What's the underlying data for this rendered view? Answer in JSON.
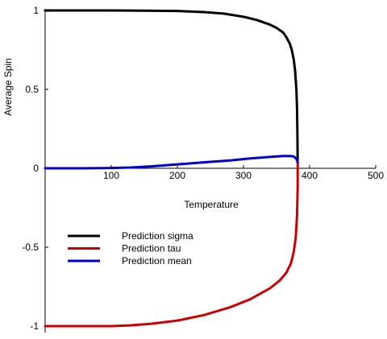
{
  "chart_data": {
    "type": "line",
    "xlabel": "Temperature",
    "ylabel": "Average Spin",
    "xlim": [
      0,
      500
    ],
    "ylim": [
      -1,
      1
    ],
    "x_ticks": [
      100,
      200,
      300,
      400,
      500
    ],
    "x_tick_labels": [
      "100",
      "200",
      "300",
      "400",
      "500"
    ],
    "y_ticks": [
      1,
      0.5,
      0,
      -0.5,
      -1
    ],
    "y_tick_labels": [
      "1",
      "0.5",
      "0",
      "-0.5",
      "-1"
    ],
    "grid": false,
    "legend_position": "bottom-left",
    "series": [
      {
        "name": "Prediction sigma",
        "color": "#000000",
        "x": [
          0,
          50,
          100,
          150,
          200,
          240,
          270,
          300,
          320,
          340,
          350,
          360,
          365,
          370,
          373,
          376,
          378,
          380,
          381,
          381.5,
          382
        ],
        "y": [
          1,
          1,
          1,
          0.999,
          0.997,
          0.99,
          0.98,
          0.96,
          0.94,
          0.91,
          0.89,
          0.86,
          0.83,
          0.79,
          0.75,
          0.69,
          0.62,
          0.5,
          0.38,
          0.25,
          0.04
        ]
      },
      {
        "name": "Prediction tau",
        "color": "#cc0000",
        "x": [
          0,
          50,
          100,
          130,
          160,
          200,
          240,
          280,
          310,
          340,
          355,
          365,
          372,
          376,
          379,
          381,
          382,
          382
        ],
        "y": [
          -1,
          -1,
          -1,
          -0.995,
          -0.985,
          -0.965,
          -0.93,
          -0.88,
          -0.83,
          -0.76,
          -0.71,
          -0.66,
          -0.6,
          -0.53,
          -0.44,
          -0.3,
          -0.12,
          0.04
        ]
      },
      {
        "name": "Prediction mean",
        "color": "#0000cc",
        "x": [
          0,
          50,
          100,
          130,
          160,
          200,
          240,
          280,
          310,
          340,
          360,
          370,
          376,
          380,
          382
        ],
        "y": [
          0,
          0,
          0.002,
          0.005,
          0.012,
          0.025,
          0.038,
          0.05,
          0.062,
          0.072,
          0.078,
          0.078,
          0.075,
          0.06,
          0.04
        ]
      }
    ]
  }
}
